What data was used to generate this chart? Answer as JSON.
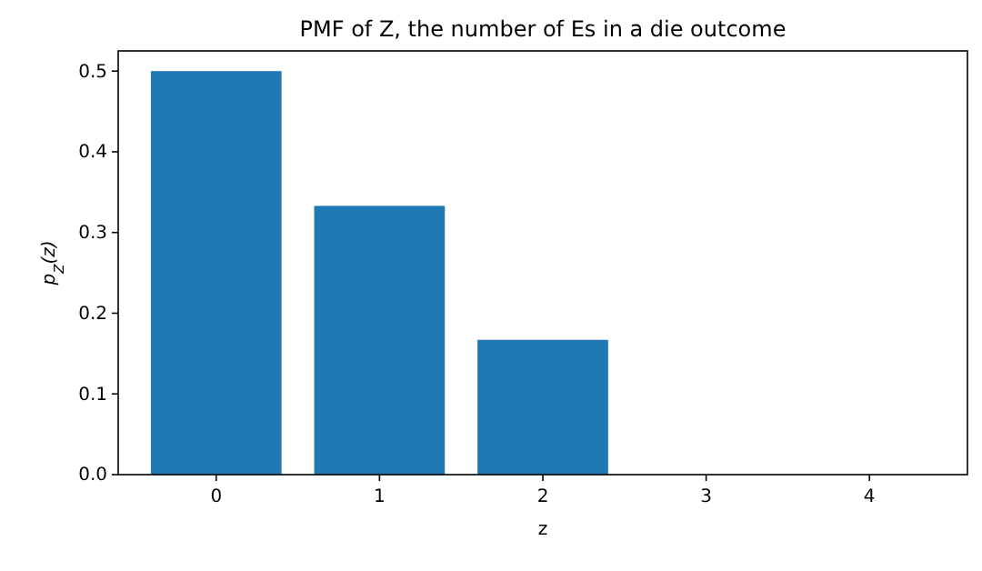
{
  "chart_data": {
    "type": "bar",
    "title": "PMF of Z, the number of Es in a die outcome",
    "xlabel": "z",
    "ylabel": "p$_{Z}$(z)",
    "categories": [
      "0",
      "1",
      "2",
      "3",
      "4"
    ],
    "values": [
      0.5,
      0.333,
      0.167,
      0,
      0
    ],
    "color": "#1f77b4",
    "ylim": [
      0,
      0.525
    ],
    "yticks": [
      {
        "value": 0,
        "label": "0.0"
      },
      {
        "value": 0.1,
        "label": "0.1"
      },
      {
        "value": 0.2,
        "label": "0.2"
      },
      {
        "value": 0.3,
        "label": "0.3"
      },
      {
        "value": 0.4,
        "label": "0.4"
      },
      {
        "value": 0.5,
        "label": "0.5"
      }
    ],
    "grid": false
  }
}
